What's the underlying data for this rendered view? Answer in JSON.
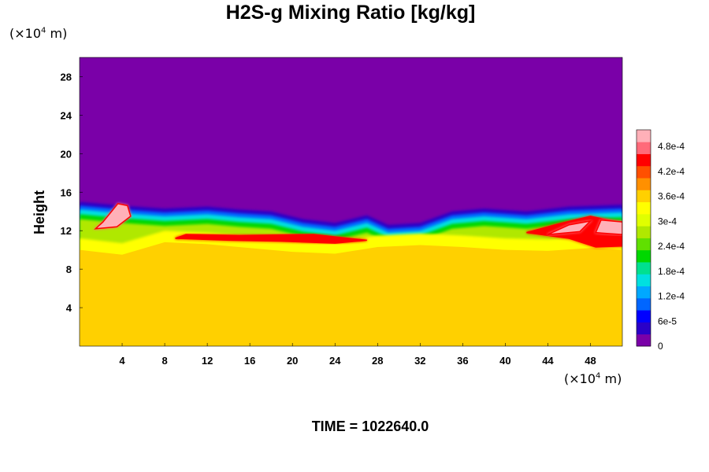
{
  "chart_data": {
    "type": "heatmap",
    "title": "H2S-g Mixing Ratio [kg/kg]",
    "xlabel": "",
    "ylabel": "Height",
    "x_unit_prefix": "(×10",
    "x_unit_exp": "4",
    "x_unit_suffix": " m)",
    "y_unit_prefix": "(×10",
    "y_unit_exp": "4",
    "y_unit_suffix": " m)",
    "xlim": [
      0,
      51
    ],
    "ylim": [
      0,
      30
    ],
    "x_ticks": [
      4,
      8,
      12,
      16,
      20,
      24,
      28,
      32,
      36,
      40,
      44,
      48
    ],
    "y_ticks": [
      4,
      8,
      12,
      16,
      20,
      24,
      28
    ],
    "colorbar": {
      "range": [
        0,
        0.00052
      ],
      "tick_values": [
        0,
        6e-05,
        0.00012,
        0.00018,
        0.00024,
        0.0003,
        0.00036,
        0.00042,
        0.00048
      ],
      "tick_labels": [
        "0",
        "6e-5",
        "1.2e-4",
        "1.8e-4",
        "2.4e-4",
        "3e-4",
        "3.6e-4",
        "4.2e-4",
        "4.8e-4"
      ],
      "colors": [
        "#7a00a8",
        "#2a00c8",
        "#0000ff",
        "#0066ff",
        "#00a8ff",
        "#00e0e0",
        "#00e090",
        "#00d800",
        "#60e000",
        "#b0e800",
        "#e0ff00",
        "#ffff00",
        "#ffd000",
        "#ff9000",
        "#ff5000",
        "#ff0000",
        "#ff6a7a",
        "#ffb0b8"
      ]
    },
    "background_value": 0.00035,
    "upper_value": 0,
    "interface_height": [
      {
        "x": 0,
        "y": 15.0
      },
      {
        "x": 4,
        "y": 14.6
      },
      {
        "x": 8,
        "y": 14.3
      },
      {
        "x": 12,
        "y": 14.5
      },
      {
        "x": 15,
        "y": 14.2
      },
      {
        "x": 18,
        "y": 14.0
      },
      {
        "x": 21,
        "y": 13.2
      },
      {
        "x": 24,
        "y": 12.8
      },
      {
        "x": 27,
        "y": 13.6
      },
      {
        "x": 29,
        "y": 12.6
      },
      {
        "x": 32,
        "y": 12.8
      },
      {
        "x": 35,
        "y": 14.0
      },
      {
        "x": 38,
        "y": 14.3
      },
      {
        "x": 42,
        "y": 14.0
      },
      {
        "x": 46,
        "y": 14.5
      },
      {
        "x": 51,
        "y": 14.7
      }
    ],
    "mixed_layer_bottom": [
      {
        "x": 0,
        "y": 10.0
      },
      {
        "x": 4,
        "y": 9.5
      },
      {
        "x": 8,
        "y": 10.8
      },
      {
        "x": 12,
        "y": 10.6
      },
      {
        "x": 16,
        "y": 10.2
      },
      {
        "x": 20,
        "y": 9.8
      },
      {
        "x": 24,
        "y": 9.6
      },
      {
        "x": 28,
        "y": 10.3
      },
      {
        "x": 32,
        "y": 10.5
      },
      {
        "x": 36,
        "y": 10.3
      },
      {
        "x": 40,
        "y": 10.0
      },
      {
        "x": 44,
        "y": 9.9
      },
      {
        "x": 48,
        "y": 10.2
      },
      {
        "x": 51,
        "y": 10.0
      }
    ],
    "high_value_regions": [
      {
        "value": 0.0005,
        "points": [
          [
            1.5,
            12.2
          ],
          [
            3.5,
            12.4
          ],
          [
            4.8,
            13.5
          ],
          [
            4.5,
            14.6
          ],
          [
            3.6,
            14.8
          ],
          [
            2.2,
            12.9
          ]
        ]
      },
      {
        "value": 0.00046,
        "points": [
          [
            9,
            11.2
          ],
          [
            14,
            11.0
          ],
          [
            19,
            10.9
          ],
          [
            24,
            10.7
          ],
          [
            27,
            11.0
          ],
          [
            22,
            11.6
          ],
          [
            15,
            11.5
          ],
          [
            10,
            11.6
          ]
        ]
      },
      {
        "value": 0.00046,
        "points": [
          [
            42,
            11.8
          ],
          [
            46,
            11.2
          ],
          [
            48.5,
            10.3
          ],
          [
            51,
            10.4
          ],
          [
            51,
            12.8
          ],
          [
            48,
            13.5
          ],
          [
            45,
            12.7
          ]
        ]
      },
      {
        "value": 0.0005,
        "points": [
          [
            44,
            11.6
          ],
          [
            47,
            11.9
          ],
          [
            48,
            13.0
          ],
          [
            46,
            12.6
          ]
        ]
      },
      {
        "value": 0.0005,
        "points": [
          [
            48.5,
            11.8
          ],
          [
            51,
            11.6
          ],
          [
            51,
            12.9
          ],
          [
            49,
            13.1
          ]
        ]
      }
    ],
    "label_time_prefix": "TIME = ",
    "label_time_value": "1022640.0"
  }
}
